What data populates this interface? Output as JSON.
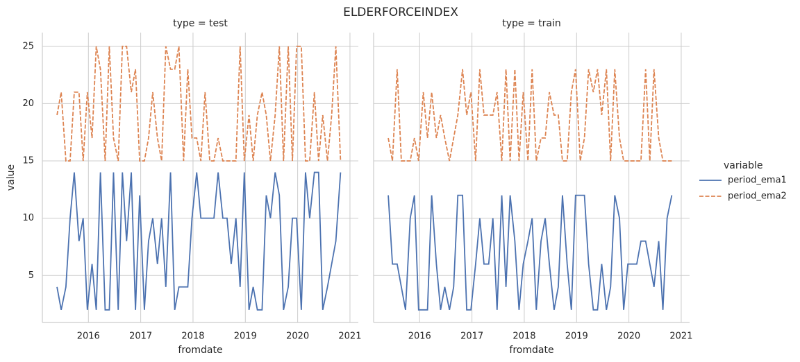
{
  "title": "ELDERFORCEINDEX",
  "legend_title": "variable",
  "chart_data": [
    {
      "type": "line",
      "title": "type = test",
      "xlabel": "fromdate",
      "ylabel": "value",
      "x": [
        2015.4,
        2015.48,
        2015.57,
        2015.65,
        2015.73,
        2015.82,
        2015.9,
        2015.98,
        2016.07,
        2016.15,
        2016.23,
        2016.32,
        2016.4,
        2016.48,
        2016.57,
        2016.65,
        2016.73,
        2016.82,
        2016.9,
        2016.98,
        2017.07,
        2017.15,
        2017.23,
        2017.32,
        2017.4,
        2017.48,
        2017.57,
        2017.65,
        2017.73,
        2017.82,
        2017.9,
        2017.98,
        2018.07,
        2018.15,
        2018.23,
        2018.32,
        2018.4,
        2018.48,
        2018.57,
        2018.65,
        2018.73,
        2018.82,
        2018.9,
        2018.98,
        2019.07,
        2019.15,
        2019.23,
        2019.32,
        2019.4,
        2019.48,
        2019.57,
        2019.65,
        2019.73,
        2019.82,
        2019.9,
        2019.98,
        2020.07,
        2020.15,
        2020.23,
        2020.32,
        2020.4,
        2020.48,
        2020.57,
        2020.65,
        2020.73,
        2020.82
      ],
      "series": [
        {
          "name": "period_ema1",
          "color": "#4c72b0",
          "linestyle": "solid",
          "values": [
            4,
            2,
            4,
            10,
            14,
            8,
            10,
            2,
            6,
            2,
            14,
            2,
            2,
            14,
            2,
            14,
            8,
            14,
            2,
            12,
            2,
            8,
            10,
            6,
            10,
            4,
            14,
            2,
            4,
            4,
            4,
            10,
            14,
            10,
            10,
            10,
            10,
            14,
            10,
            10,
            6,
            10,
            4,
            14,
            2,
            4,
            2,
            2,
            12,
            10,
            14,
            12,
            2,
            4,
            10,
            10,
            2,
            14,
            10,
            14,
            14,
            2,
            4,
            6,
            8,
            14
          ]
        },
        {
          "name": "period_ema2",
          "color": "#dd8452",
          "linestyle": "dashed",
          "values": [
            19,
            21,
            15,
            15,
            21,
            21,
            15,
            21,
            17,
            25,
            23,
            15,
            25,
            17,
            15,
            25,
            25,
            21,
            23,
            15,
            15,
            17,
            21,
            17,
            15,
            25,
            23,
            23,
            25,
            15,
            23,
            17,
            17,
            15,
            21,
            15,
            15,
            17,
            15,
            15,
            15,
            15,
            25,
            15,
            19,
            15,
            19,
            21,
            19,
            15,
            19,
            25,
            15,
            25,
            15,
            25,
            25,
            15,
            15,
            21,
            15,
            19,
            15,
            19,
            25,
            15
          ]
        }
      ],
      "xlim": [
        2015.12,
        2021.16
      ],
      "xticks": [
        2016,
        2017,
        2018,
        2019,
        2020,
        2021
      ],
      "ylim": [
        0.9,
        26.2
      ],
      "yticks": [
        5,
        10,
        15,
        20,
        25
      ],
      "grid": true
    },
    {
      "type": "line",
      "title": "type = train",
      "xlabel": "fromdate",
      "x": [
        2015.4,
        2015.48,
        2015.57,
        2015.65,
        2015.73,
        2015.82,
        2015.9,
        2015.98,
        2016.07,
        2016.15,
        2016.23,
        2016.32,
        2016.4,
        2016.48,
        2016.57,
        2016.65,
        2016.73,
        2016.82,
        2016.9,
        2016.98,
        2017.07,
        2017.15,
        2017.23,
        2017.32,
        2017.4,
        2017.48,
        2017.57,
        2017.65,
        2017.73,
        2017.82,
        2017.9,
        2017.98,
        2018.07,
        2018.15,
        2018.23,
        2018.32,
        2018.4,
        2018.48,
        2018.57,
        2018.65,
        2018.73,
        2018.82,
        2018.9,
        2018.98,
        2019.07,
        2019.15,
        2019.23,
        2019.32,
        2019.4,
        2019.48,
        2019.57,
        2019.65,
        2019.73,
        2019.82,
        2019.9,
        2019.98,
        2020.07,
        2020.15,
        2020.23,
        2020.32,
        2020.4,
        2020.48,
        2020.57,
        2020.65,
        2020.73,
        2020.82
      ],
      "series": [
        {
          "name": "period_ema1",
          "color": "#4c72b0",
          "linestyle": "solid",
          "values": [
            12,
            6,
            6,
            4,
            2,
            10,
            12,
            2,
            2,
            2,
            12,
            6,
            2,
            4,
            2,
            4,
            12,
            12,
            2,
            2,
            6,
            10,
            6,
            6,
            10,
            2,
            12,
            4,
            12,
            8,
            2,
            6,
            8,
            10,
            2,
            8,
            10,
            6,
            2,
            4,
            12,
            6,
            2,
            12,
            12,
            12,
            6,
            2,
            2,
            6,
            2,
            4,
            12,
            10,
            2,
            6,
            6,
            6,
            8,
            8,
            6,
            4,
            8,
            2,
            10,
            12
          ]
        },
        {
          "name": "period_ema2",
          "color": "#dd8452",
          "linestyle": "dashed",
          "values": [
            17,
            15,
            23,
            15,
            15,
            15,
            17,
            15,
            21,
            17,
            21,
            17,
            19,
            17,
            15,
            17,
            19,
            23,
            19,
            21,
            15,
            23,
            19,
            19,
            19,
            21,
            15,
            23,
            15,
            23,
            15,
            21,
            15,
            23,
            15,
            17,
            17,
            21,
            19,
            19,
            15,
            15,
            21,
            23,
            15,
            17,
            23,
            21,
            23,
            19,
            23,
            15,
            23,
            17,
            15,
            15,
            15,
            15,
            15,
            23,
            15,
            23,
            17,
            15,
            15,
            15
          ]
        }
      ],
      "xlim": [
        2015.12,
        2021.16
      ],
      "xticks": [
        2016,
        2017,
        2018,
        2019,
        2020,
        2021
      ],
      "ylim": [
        0.9,
        26.2
      ],
      "yticks": [
        5,
        10,
        15,
        20,
        25
      ],
      "grid": true
    }
  ]
}
